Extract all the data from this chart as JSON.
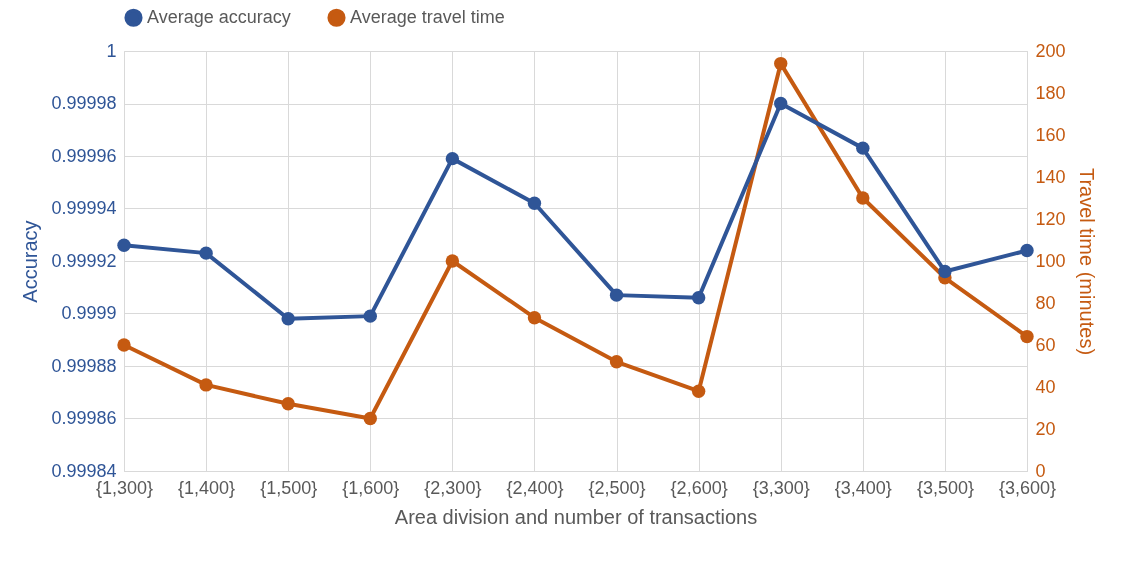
{
  "chart_data": {
    "type": "line",
    "xlabel": "Area division and number of transactions",
    "ylabel": "Accuracy",
    "y2label": "Travel time (minutes)",
    "categories": [
      "{1,300}",
      "{1,400}",
      "{1,500}",
      "{1,600}",
      "{2,300}",
      "{2,400}",
      "{2,500}",
      "{2,600}",
      "{3,300}",
      "{3,400}",
      "{3,500}",
      "{3,600}"
    ],
    "series": [
      {
        "name": "Average accuracy",
        "color": "#2f5597",
        "values": [
          0.999926,
          0.999923,
          0.999898,
          0.999899,
          0.999959,
          0.999942,
          0.999907,
          0.999906,
          0.99998,
          0.999963,
          0.999916,
          0.999924
        ]
      },
      {
        "name": "Average travel time",
        "color": "#c55a11",
        "axis": "y2",
        "values": [
          60,
          41,
          32,
          25,
          100,
          73,
          52,
          38,
          194,
          130,
          92,
          64
        ]
      }
    ],
    "ylim": [
      0.99984,
      1
    ],
    "yticks": [
      0.99984,
      0.99986,
      0.99988,
      0.9999,
      0.99992,
      0.99994,
      0.99996,
      0.99998,
      1
    ],
    "y2lim": [
      0,
      200
    ],
    "y2ticks": [
      0,
      20,
      40,
      60,
      80,
      100,
      120,
      140,
      160,
      180,
      200
    ],
    "grid": true,
    "legend": "top",
    "marker": "circle",
    "line_style": "solid"
  }
}
